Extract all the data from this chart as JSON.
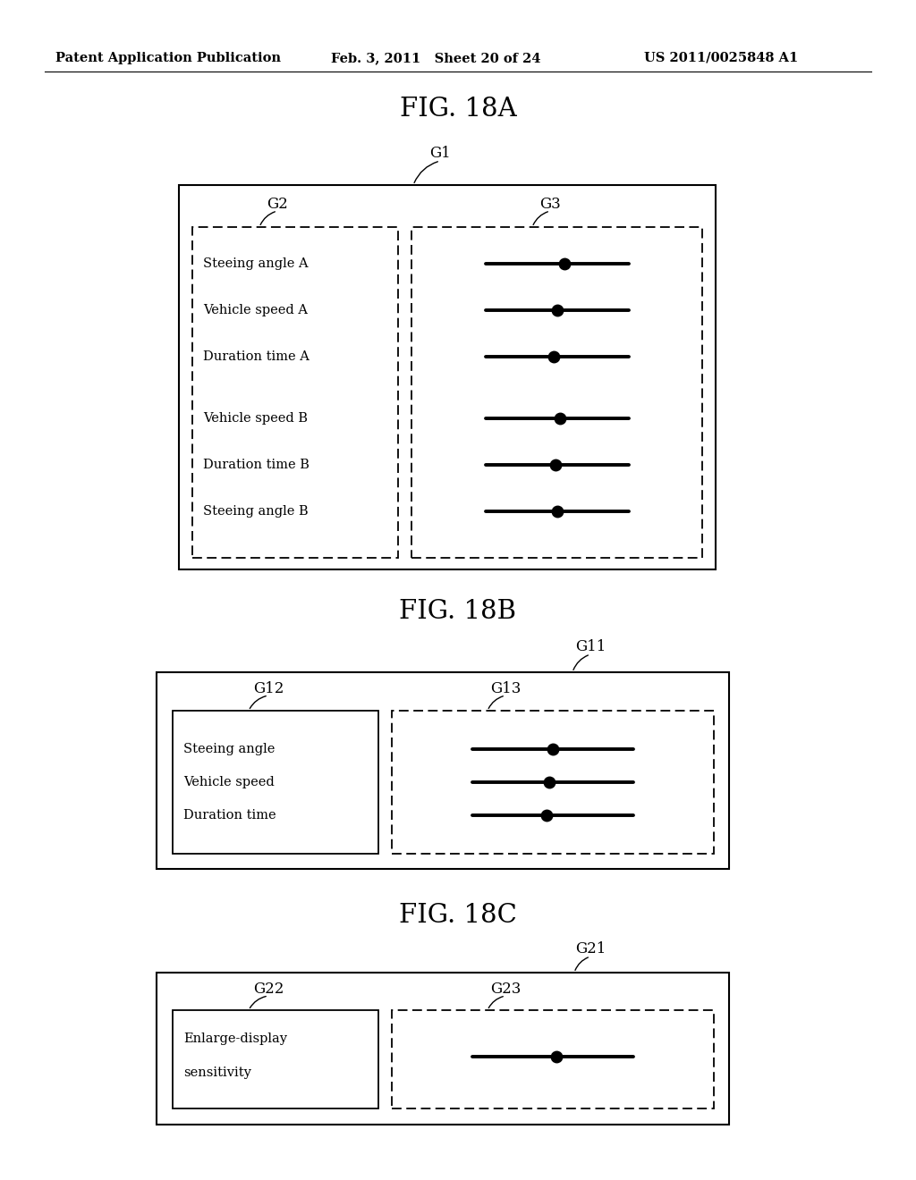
{
  "header_left": "Patent Application Publication",
  "header_mid": "Feb. 3, 2011   Sheet 20 of 24",
  "header_right": "US 2011/0025848 A1",
  "bg_color": "#ffffff",
  "fig18A": {
    "title": "FIG. 18A",
    "G1": "G1",
    "G2": "G2",
    "G3": "G3",
    "left_items": [
      "Steeing angle A",
      "Vehicle speed A",
      "Duration time A",
      "Vehicle speed B",
      "Duration time B",
      "Steeing angle B"
    ],
    "num_sliders": 6,
    "slider_dots": [
      0.55,
      0.5,
      0.48,
      0.52,
      0.49,
      0.5
    ]
  },
  "fig18B": {
    "title": "FIG. 18B",
    "G11": "G11",
    "G12": "G12",
    "G13": "G13",
    "left_items": [
      "Steeing angle",
      "Vehicle speed",
      "Duration time"
    ],
    "num_sliders": 3,
    "slider_dots": [
      0.5,
      0.48,
      0.46
    ]
  },
  "fig18C": {
    "title": "FIG. 18C",
    "G21": "G21",
    "G22": "G22",
    "G23": "G23",
    "left_items": [
      "Enlarge-display",
      "sensitivity"
    ],
    "num_sliders": 1,
    "slider_dots": [
      0.52
    ]
  }
}
